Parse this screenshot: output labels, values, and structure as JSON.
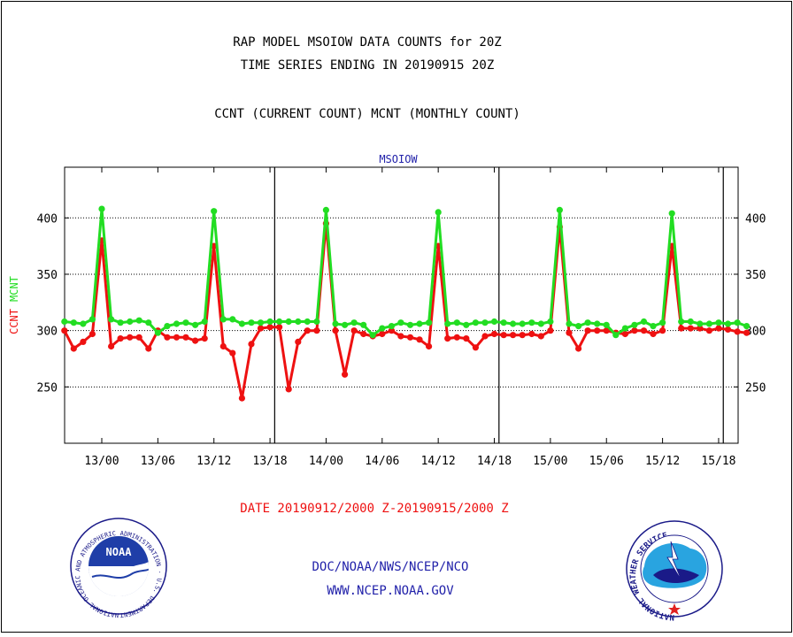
{
  "header": {
    "line1": "RAP MODEL MSOIOW DATA COUNTS for 20Z",
    "line2": "TIME SERIES ENDING IN 20190915 20Z",
    "line3": "CCNT (CURRENT COUNT) MCNT (MONTHLY COUNT)"
  },
  "footer": {
    "date_range": "DATE 20190912/2000 Z-20190915/2000 Z",
    "org_line": "DOC/NOAA/NWS/NCEP/NCO",
    "url": "WWW.NCEP.NOAA.GOV"
  },
  "logos": {
    "noaa_text": "NOAA",
    "noaa_ring_text": "NATIONAL OCEANIC AND ATMOSPHERIC ADMINISTRATION · U.S. DEPARTMENT OF COMMERCE ·",
    "nws_ring_text": "NATIONAL WEATHER SERVICE"
  },
  "colors": {
    "ccnt": "#ee1111",
    "mcnt": "#22dd22",
    "title_blue": "#2222aa",
    "axis": "#000000"
  },
  "chart_data": {
    "type": "line",
    "title": "MSOIOW",
    "ylabel_parts": [
      "CCNT",
      "MCNT"
    ],
    "x_tick_labels": [
      "13/00",
      "13/06",
      "13/12",
      "13/18",
      "14/00",
      "14/06",
      "14/12",
      "14/18",
      "15/00",
      "15/06",
      "15/12",
      "15/18"
    ],
    "x_range_hours_label": "13/00 to 15/18",
    "ylim": [
      200,
      445
    ],
    "y_ticks": [
      250,
      300,
      350,
      400
    ],
    "grid": "horizontal dotted",
    "series": [
      {
        "name": "CCNT",
        "color": "#ee1111",
        "values": [
          300,
          284,
          290,
          297,
          380,
          286,
          293,
          294,
          294,
          284,
          300,
          294,
          294,
          294,
          291,
          293,
          375,
          286,
          280,
          240,
          288,
          302,
          303,
          303,
          248,
          290,
          300,
          300,
          395,
          300,
          261,
          300,
          297,
          295,
          297,
          300,
          295,
          294,
          292,
          286,
          375,
          293,
          294,
          293,
          285,
          295,
          297,
          296,
          296,
          296,
          297,
          295,
          300,
          392,
          298,
          284,
          300,
          300,
          300,
          298,
          297,
          300,
          300,
          297,
          300,
          375,
          302,
          302,
          302,
          300,
          302,
          301,
          299,
          298
        ]
      },
      {
        "name": "MCNT",
        "color": "#22dd22",
        "values": [
          308,
          307,
          306,
          310,
          408,
          310,
          307,
          308,
          309,
          307,
          298,
          304,
          306,
          307,
          305,
          308,
          406,
          310,
          310,
          306,
          307,
          307,
          308,
          308,
          308,
          308,
          308,
          308,
          407,
          306,
          305,
          307,
          305,
          296,
          302,
          304,
          307,
          305,
          306,
          307,
          405,
          306,
          307,
          305,
          307,
          307,
          308,
          307,
          306,
          306,
          307,
          306,
          308,
          407,
          306,
          304,
          307,
          306,
          305,
          296,
          302,
          305,
          308,
          304,
          307,
          404,
          308,
          308,
          306,
          306,
          307,
          306,
          307,
          304
        ]
      }
    ]
  }
}
